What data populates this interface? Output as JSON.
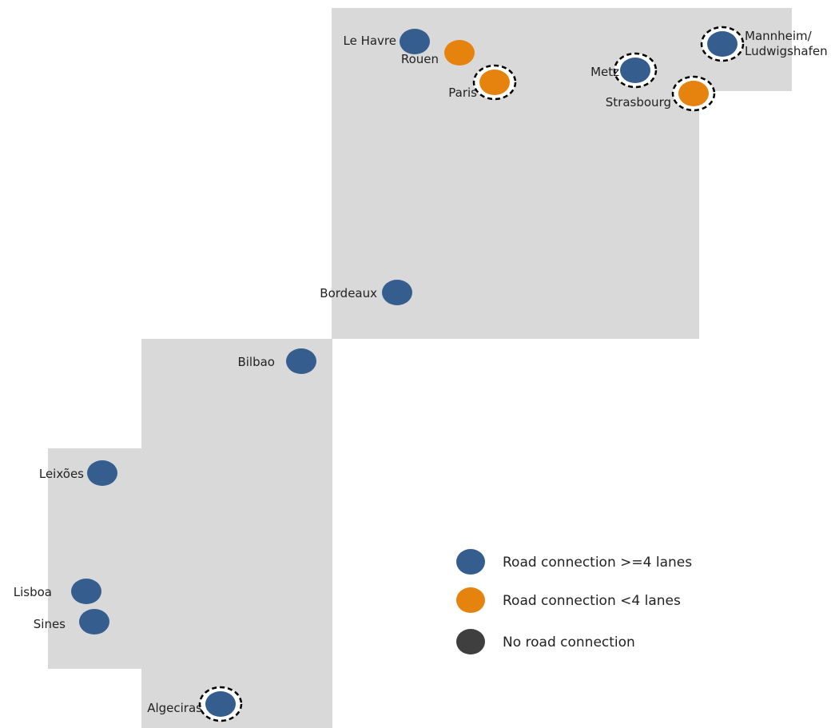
{
  "map": {
    "colors": {
      "background": "#ffffff",
      "region": "#d9d9d9",
      "road_4plus": "#355e8f",
      "road_less4": "#e6820e",
      "no_road": "#3f3f3f",
      "ring": "#000000"
    },
    "cities": [
      {
        "name": "Le Havre",
        "connection": "road_4plus",
        "ringed": false
      },
      {
        "name": "Rouen",
        "connection": "road_less4",
        "ringed": false
      },
      {
        "name": "Paris",
        "connection": "road_less4",
        "ringed": true
      },
      {
        "name": "Metz",
        "connection": "road_4plus",
        "ringed": true
      },
      {
        "name": "Mannheim/ Ludwigshafen",
        "connection": "road_4plus",
        "ringed": true
      },
      {
        "name": "Strasbourg",
        "connection": "road_less4",
        "ringed": true
      },
      {
        "name": "Bordeaux",
        "connection": "road_4plus",
        "ringed": false
      },
      {
        "name": "Bilbao",
        "connection": "road_4plus",
        "ringed": false
      },
      {
        "name": "Leixões",
        "connection": "road_4plus",
        "ringed": false
      },
      {
        "name": "Lisboa",
        "connection": "road_4plus",
        "ringed": false
      },
      {
        "name": "Sines",
        "connection": "road_4plus",
        "ringed": false
      },
      {
        "name": "Algeciras",
        "connection": "road_4plus",
        "ringed": true
      }
    ],
    "legend": [
      {
        "label": "Road connection >=4 lanes",
        "connection": "road_4plus"
      },
      {
        "label": "Road connection <4 lanes",
        "connection": "road_less4"
      },
      {
        "label": "No road connection",
        "connection": "no_road"
      }
    ]
  }
}
